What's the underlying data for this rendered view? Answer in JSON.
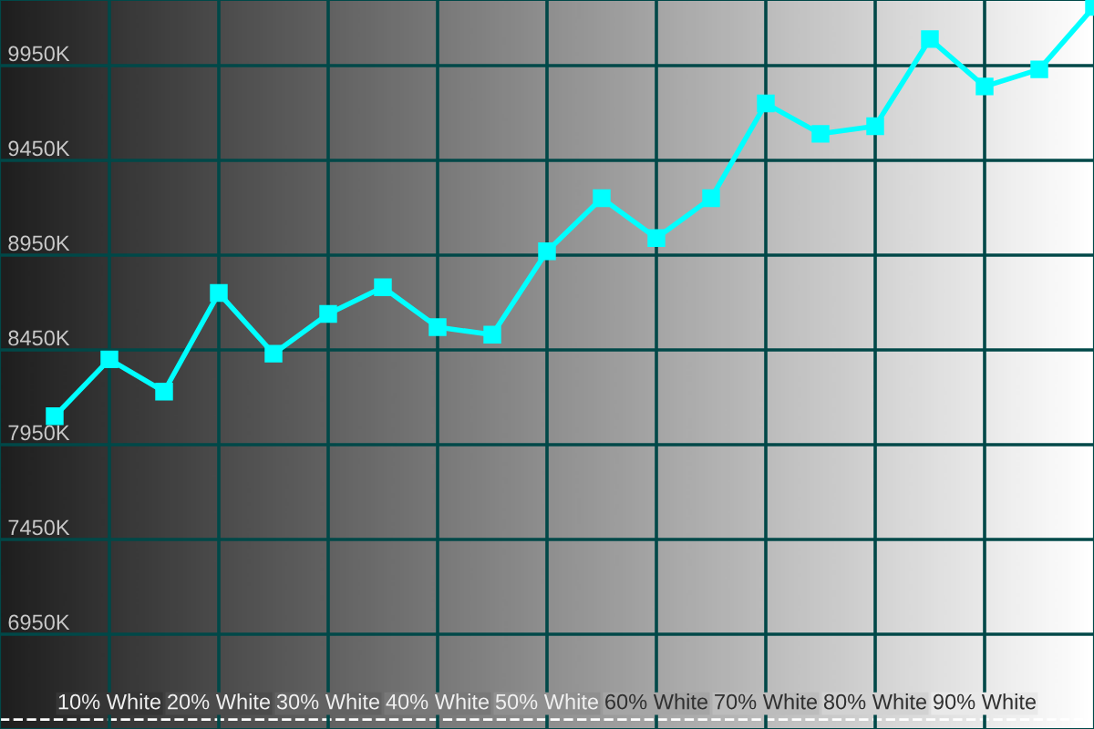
{
  "chart_data": {
    "type": "line",
    "x": [
      5,
      10,
      15,
      20,
      25,
      30,
      35,
      40,
      45,
      50,
      55,
      60,
      65,
      70,
      75,
      80,
      85,
      90,
      95,
      100
    ],
    "series": [
      {
        "color": "#00ffff",
        "values": [
          8100,
          8400,
          8230,
          8750,
          8430,
          8640,
          8780,
          8570,
          8530,
          8970,
          9250,
          9040,
          9250,
          9750,
          9590,
          9630,
          10090,
          9840,
          9930,
          10260
        ]
      }
    ],
    "xlim": [
      0,
      100
    ],
    "xticks": [
      {
        "value": 10,
        "label": "10% White"
      },
      {
        "value": 20,
        "label": "20% White"
      },
      {
        "value": 30,
        "label": "30% White"
      },
      {
        "value": 40,
        "label": "40% White"
      },
      {
        "value": 50,
        "label": "50% White"
      },
      {
        "value": 60,
        "label": "60% White"
      },
      {
        "value": 70,
        "label": "70% White"
      },
      {
        "value": 80,
        "label": "80% White"
      },
      {
        "value": 90,
        "label": "90% White"
      }
    ],
    "ylim": [
      6450,
      10296
    ],
    "yticks": [
      {
        "value": 6950,
        "label": "6950K"
      },
      {
        "value": 7450,
        "label": "7450K"
      },
      {
        "value": 7950,
        "label": "7950K"
      },
      {
        "value": 8450,
        "label": "8450K"
      },
      {
        "value": 8950,
        "label": "8950K"
      },
      {
        "value": 9450,
        "label": "9450K"
      },
      {
        "value": 9950,
        "label": "9950K"
      }
    ],
    "ref_lines": [
      {
        "axis": "y",
        "value": 6500,
        "color": "#ffffff",
        "line_style": "dashed"
      }
    ],
    "grid": true,
    "marker": "square",
    "line_style": "solid"
  }
}
